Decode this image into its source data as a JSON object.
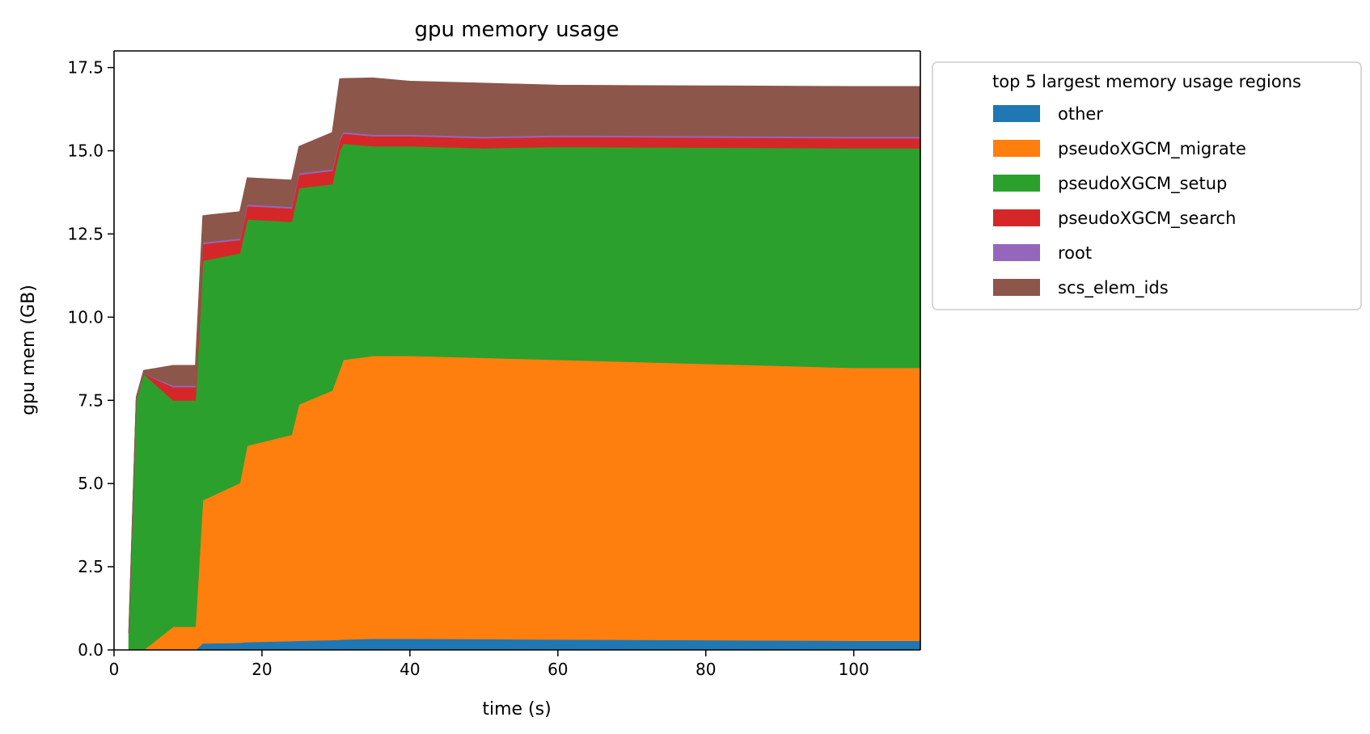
{
  "chart_data": {
    "type": "area",
    "title": "gpu memory usage",
    "xlabel": "time (s)",
    "ylabel": "gpu mem (GB)",
    "xlim": [
      0,
      109
    ],
    "ylim": [
      0,
      18
    ],
    "xticks": [
      0,
      20,
      40,
      60,
      80,
      100
    ],
    "xtick_labels": [
      "0",
      "20",
      "40",
      "60",
      "80",
      "100"
    ],
    "yticks": [
      0,
      2.5,
      5,
      7.5,
      10,
      12.5,
      15,
      17.5
    ],
    "ytick_labels": [
      "0.0",
      "2.5",
      "5.0",
      "7.5",
      "10.0",
      "12.5",
      "15.0",
      "17.5"
    ],
    "grid": false,
    "stacked": true,
    "legend": {
      "title": "top 5 largest memory usage regions",
      "placement": "outside-upper-right"
    },
    "x": [
      2,
      3,
      4,
      8,
      11,
      12,
      17,
      18,
      24,
      25,
      29.5,
      30.5,
      31,
      35,
      40,
      50,
      60,
      70,
      80,
      90,
      100,
      109
    ],
    "series": [
      {
        "name": "other",
        "color": "#1f77b4",
        "values": [
          0,
          0,
          0,
          0,
          0,
          0.2,
          0.22,
          0.24,
          0.27,
          0.28,
          0.3,
          0.31,
          0.32,
          0.34,
          0.34,
          0.33,
          0.32,
          0.31,
          0.3,
          0.29,
          0.28,
          0.28
        ]
      },
      {
        "name": "pseudoXGCM_migrate",
        "color": "#ff7f0e",
        "values": [
          0,
          0,
          0,
          0.7,
          0.7,
          4.3,
          4.8,
          5.9,
          6.2,
          7.1,
          7.5,
          8.1,
          8.4,
          8.5,
          8.5,
          8.45,
          8.4,
          8.35,
          8.3,
          8.25,
          8.2,
          8.2
        ]
      },
      {
        "name": "pseudoXGCM_setup",
        "color": "#2ca02c",
        "values": [
          0.5,
          7.5,
          8.3,
          6.8,
          6.8,
          7.2,
          6.9,
          6.8,
          6.4,
          6.5,
          6.2,
          6.6,
          6.5,
          6.3,
          6.3,
          6.3,
          6.4,
          6.45,
          6.5,
          6.55,
          6.6,
          6.6
        ]
      },
      {
        "name": "pseudoXGCM_search",
        "color": "#d62728",
        "values": [
          0,
          0,
          0,
          0.4,
          0.4,
          0.5,
          0.4,
          0.4,
          0.4,
          0.4,
          0.4,
          0.3,
          0.3,
          0.3,
          0.3,
          0.3,
          0.3,
          0.3,
          0.3,
          0.3,
          0.3,
          0.3
        ]
      },
      {
        "name": "root",
        "color": "#9467bd",
        "values": [
          0,
          0,
          0,
          0.05,
          0.05,
          0.05,
          0.05,
          0.05,
          0.05,
          0.05,
          0.05,
          0.05,
          0.05,
          0.05,
          0.05,
          0.05,
          0.05,
          0.05,
          0.05,
          0.05,
          0.05,
          0.05
        ]
      },
      {
        "name": "scs_elem_ids",
        "color": "#8c564b",
        "values": [
          0.1,
          0.1,
          0.1,
          0.6,
          0.6,
          0.8,
          0.8,
          0.8,
          0.8,
          0.8,
          1.1,
          1.8,
          1.6,
          1.7,
          1.6,
          1.6,
          1.5,
          1.5,
          1.5,
          1.5,
          1.5,
          1.5
        ]
      }
    ]
  }
}
